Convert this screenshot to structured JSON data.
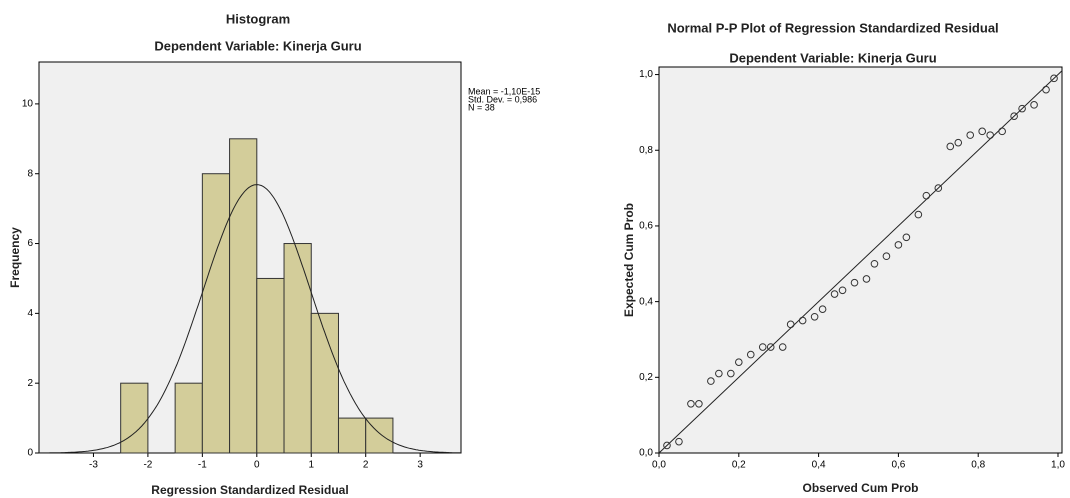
{
  "chart_data": [
    {
      "type": "histogram",
      "title": "Histogram",
      "subtitle": "Dependent Variable: Kinerja Guru",
      "x_label": "Regression Standardized Residual",
      "y_label": "Frequency",
      "bins": [
        -2.5,
        -2,
        -1.5,
        -1,
        -0.5,
        0,
        0.5,
        1,
        1.5,
        2,
        2.5
      ],
      "values": [
        2,
        0,
        2,
        8,
        9,
        5,
        6,
        4,
        1,
        1
      ],
      "color": "#d3cd9a",
      "xlim": [
        -4,
        3.75
      ],
      "xticks": [
        -3,
        -2,
        -1,
        0,
        1,
        2,
        3
      ],
      "ylim": [
        0,
        11.2
      ],
      "yticks": [
        0,
        2,
        4,
        6,
        8,
        10
      ],
      "stats": [
        {
          "value": -1.1e-15,
          "label": "Mean = -1,10E-15"
        },
        {
          "value": 0.986,
          "label": "Std. Dev. = 0,986"
        },
        {
          "value": 38,
          "label": "N = 38"
        }
      ]
    },
    {
      "type": "scatter",
      "title": "Normal P-P Plot of Regression Standardized Residual",
      "subtitle": "Dependent Variable: Kinerja Guru",
      "x_label": "Observed Cum Prob",
      "y_label": "Expected Cum Prob",
      "x": [
        0.02,
        0.05,
        0.08,
        0.1,
        0.13,
        0.15,
        0.18,
        0.2,
        0.23,
        0.26,
        0.28,
        0.31,
        0.33,
        0.36,
        0.39,
        0.41,
        0.44,
        0.46,
        0.49,
        0.52,
        0.54,
        0.57,
        0.6,
        0.62,
        0.65,
        0.67,
        0.7,
        0.73,
        0.75,
        0.78,
        0.81,
        0.83,
        0.86,
        0.89,
        0.91,
        0.94,
        0.97,
        0.99
      ],
      "values": [
        0.02,
        0.03,
        0.13,
        0.13,
        0.19,
        0.21,
        0.21,
        0.24,
        0.26,
        0.28,
        0.28,
        0.28,
        0.34,
        0.35,
        0.36,
        0.38,
        0.42,
        0.43,
        0.45,
        0.46,
        0.5,
        0.52,
        0.55,
        0.57,
        0.63,
        0.68,
        0.7,
        0.81,
        0.82,
        0.84,
        0.85,
        0.84,
        0.85,
        0.89,
        0.91,
        0.92,
        0.96,
        0.99
      ],
      "xlim": [
        0,
        1.01
      ],
      "ylim": [
        0,
        1.02
      ],
      "xticks": [
        {
          "value": 0,
          "label": "0,0"
        },
        {
          "value": 0.2,
          "label": "0,2"
        },
        {
          "value": 0.4,
          "label": "0,4"
        },
        {
          "value": 0.6,
          "label": "0,6"
        },
        {
          "value": 0.8,
          "label": "0,8"
        },
        {
          "value": 1,
          "label": "1,0"
        }
      ],
      "yticks": [
        {
          "value": 0,
          "label": "0,0"
        },
        {
          "value": 0.2,
          "label": "0,2"
        },
        {
          "value": 0.4,
          "label": "0,4"
        },
        {
          "value": 0.6,
          "label": "0,6"
        },
        {
          "value": 0.8,
          "label": "0,8"
        },
        {
          "value": 1,
          "label": "1,0"
        }
      ]
    }
  ]
}
